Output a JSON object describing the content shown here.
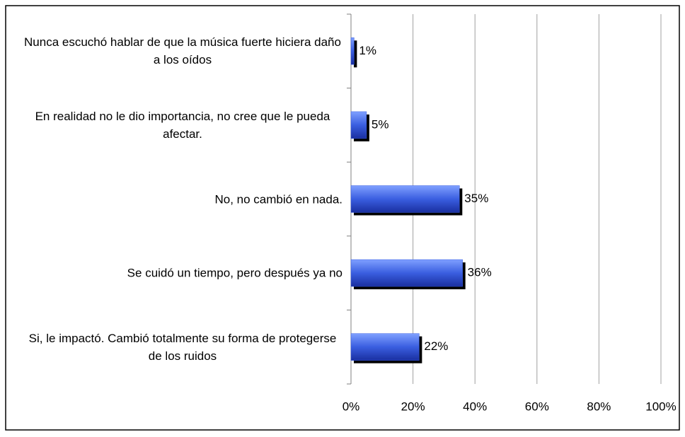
{
  "chart_data": {
    "type": "bar",
    "orientation": "horizontal",
    "categories": [
      "Nunca escuchó hablar de que la música fuerte hiciera daño a los oídos",
      "En realidad no le dio importancia, no cree que le pueda afectar.",
      "No, no cambió en nada.",
      "Se cuidó un tiempo, pero después ya no",
      "Si, le impactó. Cambió totalmente su forma de protegerse de los ruidos"
    ],
    "values": [
      1,
      5,
      35,
      36,
      22
    ],
    "value_labels": [
      "1%",
      "5%",
      "35%",
      "36%",
      "22%"
    ],
    "color": "#3a5ee0",
    "xlim": [
      0,
      100
    ],
    "xticks": [
      {
        "value": 0,
        "label": "0%"
      },
      {
        "value": 20,
        "label": "20%"
      },
      {
        "value": 40,
        "label": "40%"
      },
      {
        "value": 60,
        "label": "60%"
      },
      {
        "value": 80,
        "label": "80%"
      },
      {
        "value": 100,
        "label": "100%"
      }
    ],
    "grid": true
  }
}
